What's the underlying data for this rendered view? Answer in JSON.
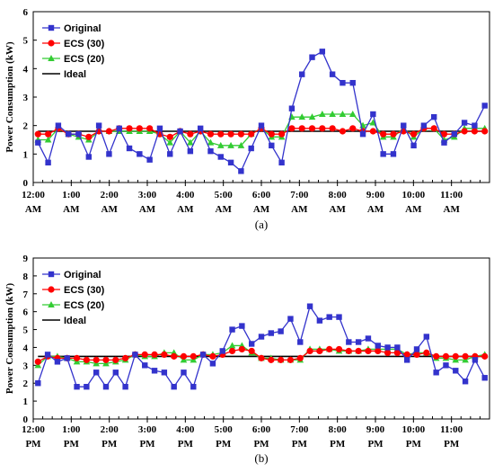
{
  "chart_data": [
    {
      "type": "line",
      "panel_label": "(a)",
      "xlabel": "",
      "ylabel": "Power Consumption (kW)",
      "ylim": [
        0,
        6
      ],
      "yticks": [
        "0",
        "1",
        "2",
        "3",
        "4",
        "5",
        "6"
      ],
      "x_ticks": [
        {
          "x": 0,
          "line1": "12:00",
          "line2": "AM"
        },
        {
          "x": 4,
          "line1": "1:00",
          "line2": "AM"
        },
        {
          "x": 8,
          "line1": "2:00",
          "line2": "AM"
        },
        {
          "x": 12,
          "line1": "3:00",
          "line2": "AM"
        },
        {
          "x": 16,
          "line1": "4:00",
          "line2": "AM"
        },
        {
          "x": 20,
          "line1": "5:00",
          "line2": "AM"
        },
        {
          "x": 24,
          "line1": "6:00",
          "line2": "AM"
        },
        {
          "x": 28,
          "line1": "7:00",
          "line2": "AM"
        },
        {
          "x": 32,
          "line1": "8:00",
          "line2": "AM"
        },
        {
          "x": 36,
          "line1": "9:00",
          "line2": "AM"
        },
        {
          "x": 40,
          "line1": "10:00",
          "line2": "AM"
        },
        {
          "x": 44,
          "line1": "11:00",
          "line2": "AM"
        }
      ],
      "xlim": [
        0,
        48
      ],
      "legend_position": "top-left",
      "grid": false,
      "series": [
        {
          "name": "Original",
          "color": "#3333cc",
          "marker": "square",
          "values": [
            1.4,
            0.7,
            2.0,
            1.7,
            1.7,
            0.9,
            2.0,
            1.0,
            1.9,
            1.2,
            1.0,
            0.8,
            1.9,
            1.0,
            1.8,
            1.1,
            1.9,
            1.1,
            0.9,
            0.7,
            0.4,
            1.2,
            2.0,
            1.3,
            0.7,
            2.6,
            3.8,
            4.4,
            4.6,
            3.8,
            3.5,
            3.5,
            1.7,
            2.4,
            1.0,
            1.0,
            2.0,
            1.3,
            2.0,
            2.3,
            1.4,
            1.7,
            2.1,
            2.0,
            2.7
          ]
        },
        {
          "name": "ECS (30)",
          "color": "#ff0000",
          "marker": "circle",
          "values": [
            1.7,
            1.7,
            1.9,
            1.7,
            1.7,
            1.6,
            1.8,
            1.8,
            1.9,
            1.9,
            1.9,
            1.9,
            1.7,
            1.6,
            1.8,
            1.7,
            1.8,
            1.7,
            1.7,
            1.7,
            1.7,
            1.7,
            1.9,
            1.7,
            1.7,
            1.9,
            1.9,
            1.9,
            1.9,
            1.9,
            1.8,
            1.9,
            1.8,
            1.8,
            1.7,
            1.7,
            1.8,
            1.7,
            1.9,
            1.9,
            1.7,
            1.7,
            1.8,
            1.8,
            1.8
          ]
        },
        {
          "name": "ECS (20)",
          "color": "#33cc33",
          "marker": "triangle",
          "values": [
            1.5,
            1.5,
            1.9,
            1.7,
            1.6,
            1.5,
            1.8,
            1.8,
            1.8,
            1.8,
            1.8,
            1.8,
            1.7,
            1.4,
            1.8,
            1.4,
            1.8,
            1.4,
            1.3,
            1.3,
            1.3,
            1.7,
            1.9,
            1.6,
            1.6,
            2.3,
            2.3,
            2.3,
            2.4,
            2.4,
            2.4,
            2.4,
            2.0,
            2.1,
            1.6,
            1.6,
            1.9,
            1.6,
            1.9,
            1.9,
            1.5,
            1.6,
            1.9,
            1.9,
            1.9
          ]
        },
        {
          "name": "Ideal",
          "color": "#000000",
          "marker": "none",
          "values": [
            1.8,
            1.8
          ]
        }
      ]
    },
    {
      "type": "line",
      "panel_label": "(b)",
      "xlabel": "",
      "ylabel": "Power Consumption (kW)",
      "ylim": [
        0,
        9
      ],
      "yticks": [
        "0",
        "1",
        "2",
        "3",
        "4",
        "5",
        "6",
        "7",
        "8",
        "9"
      ],
      "x_ticks": [
        {
          "x": 0,
          "line1": "12:00",
          "line2": "PM"
        },
        {
          "x": 4,
          "line1": "1:00",
          "line2": "PM"
        },
        {
          "x": 8,
          "line1": "2:00",
          "line2": "PM"
        },
        {
          "x": 12,
          "line1": "3:00",
          "line2": "PM"
        },
        {
          "x": 16,
          "line1": "4:00",
          "line2": "PM"
        },
        {
          "x": 20,
          "line1": "5:00",
          "line2": "PM"
        },
        {
          "x": 24,
          "line1": "6:00",
          "line2": "PM"
        },
        {
          "x": 28,
          "line1": "7:00",
          "line2": "PM"
        },
        {
          "x": 32,
          "line1": "8:00",
          "line2": "PM"
        },
        {
          "x": 36,
          "line1": "9:00",
          "line2": "PM"
        },
        {
          "x": 40,
          "line1": "10:00",
          "line2": "PM"
        },
        {
          "x": 44,
          "line1": "11:00",
          "line2": "PM"
        }
      ],
      "xlim": [
        0,
        48
      ],
      "legend_position": "top-left",
      "grid": false,
      "series": [
        {
          "name": "Original",
          "color": "#3333cc",
          "marker": "square",
          "values": [
            2.0,
            3.6,
            3.2,
            3.4,
            1.8,
            1.8,
            2.6,
            1.8,
            2.6,
            1.8,
            3.6,
            3.0,
            2.7,
            2.6,
            1.8,
            2.6,
            1.8,
            3.6,
            3.1,
            3.8,
            5.0,
            5.2,
            4.2,
            4.6,
            4.8,
            4.9,
            5.6,
            4.3,
            6.3,
            5.5,
            5.7,
            5.7,
            4.3,
            4.3,
            4.5,
            4.1,
            4.0,
            4.0,
            3.3,
            3.9,
            4.6,
            2.6,
            3.0,
            2.7,
            2.1,
            3.3,
            2.3
          ]
        },
        {
          "name": "ECS (30)",
          "color": "#ff0000",
          "marker": "circle",
          "values": [
            3.2,
            3.5,
            3.4,
            3.4,
            3.4,
            3.3,
            3.3,
            3.3,
            3.3,
            3.4,
            3.6,
            3.6,
            3.6,
            3.6,
            3.5,
            3.5,
            3.5,
            3.6,
            3.5,
            3.6,
            3.8,
            3.9,
            3.8,
            3.4,
            3.3,
            3.3,
            3.3,
            3.4,
            3.8,
            3.8,
            3.9,
            3.9,
            3.8,
            3.8,
            3.8,
            3.8,
            3.7,
            3.7,
            3.6,
            3.6,
            3.7,
            3.5,
            3.5,
            3.5,
            3.5,
            3.5,
            3.5
          ]
        },
        {
          "name": "ECS (20)",
          "color": "#33cc33",
          "marker": "triangle",
          "values": [
            3.0,
            3.5,
            3.5,
            3.4,
            3.2,
            3.2,
            3.1,
            3.1,
            3.2,
            3.3,
            3.6,
            3.5,
            3.5,
            3.7,
            3.7,
            3.3,
            3.3,
            3.6,
            3.6,
            3.7,
            4.1,
            4.1,
            3.7,
            3.4,
            3.4,
            3.3,
            3.3,
            3.3,
            3.9,
            3.9,
            3.9,
            3.8,
            3.8,
            3.8,
            3.9,
            3.9,
            3.9,
            3.9,
            3.6,
            3.7,
            3.7,
            3.4,
            3.4,
            3.3,
            3.3,
            3.5,
            3.6
          ]
        },
        {
          "name": "Ideal",
          "color": "#000000",
          "marker": "none",
          "values": [
            3.5,
            3.5
          ]
        }
      ]
    }
  ]
}
